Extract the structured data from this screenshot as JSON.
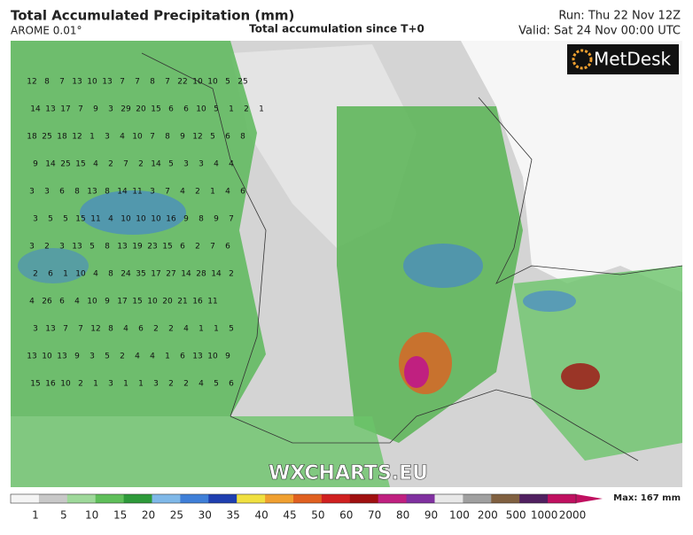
{
  "header": {
    "title": "Total Accumulated Precipitation (mm)",
    "model": "AROME 0.01°",
    "subtitle": "Total accumulation since T+0",
    "run": "Run: Thu 22 Nov 12Z",
    "valid": "Valid: Sat 24 Nov 00:00 UTC"
  },
  "logo": "MetDesk",
  "watermark": "WXCHARTS.EU",
  "colorbar": {
    "max_label": "Max: 167 mm",
    "ticks": [
      "1",
      "5",
      "10",
      "15",
      "20",
      "25",
      "30",
      "35",
      "40",
      "45",
      "50",
      "60",
      "70",
      "80",
      "90",
      "100",
      "200",
      "500",
      "1000",
      "2000"
    ],
    "colors": [
      "#f4f4f4",
      "#c8c8c8",
      "#9ed89a",
      "#5fbf5a",
      "#2e9a3a",
      "#7fb8e8",
      "#3f7fd8",
      "#1f3fb0",
      "#f0e040",
      "#f0a030",
      "#e06020",
      "#d02020",
      "#a01010",
      "#c02080",
      "#8030a0",
      "#e8e8e8",
      "#a0a0a0",
      "#806040",
      "#502060",
      "#c01060"
    ]
  },
  "map_labels": [
    [
      "12",
      "8",
      "7",
      "13",
      "10",
      "13",
      "7",
      "7",
      "8",
      "7",
      "22",
      "10",
      "10",
      "5",
      "25"
    ],
    [
      "14",
      "13",
      "17",
      "7",
      "9",
      "3",
      "29",
      "20",
      "15",
      "6",
      "6",
      "10",
      "5",
      "1",
      "2",
      "1"
    ],
    [
      "18",
      "25",
      "18",
      "12",
      "1",
      "3",
      "4",
      "10",
      "7",
      "8",
      "9",
      "12",
      "5",
      "6",
      "8"
    ],
    [
      "9",
      "14",
      "25",
      "15",
      "4",
      "2",
      "7",
      "2",
      "14",
      "5",
      "3",
      "3",
      "4",
      "4"
    ],
    [
      "3",
      "3",
      "6",
      "8",
      "13",
      "8",
      "14",
      "11",
      "3",
      "7",
      "4",
      "2",
      "1",
      "4",
      "6"
    ],
    [
      "3",
      "5",
      "5",
      "15",
      "11",
      "4",
      "10",
      "10",
      "10",
      "16",
      "9",
      "8",
      "9",
      "7"
    ],
    [
      "3",
      "2",
      "3",
      "13",
      "5",
      "8",
      "13",
      "19",
      "23",
      "15",
      "6",
      "2",
      "7",
      "6"
    ],
    [
      "2",
      "6",
      "1",
      "10",
      "4",
      "8",
      "24",
      "35",
      "17",
      "27",
      "14",
      "28",
      "14",
      "2"
    ],
    [
      "4",
      "26",
      "6",
      "4",
      "10",
      "9",
      "17",
      "15",
      "10",
      "20",
      "21",
      "16",
      "11"
    ],
    [
      "3",
      "13",
      "7",
      "7",
      "12",
      "8",
      "4",
      "6",
      "2",
      "2",
      "4",
      "1",
      "1",
      "5"
    ],
    [
      "13",
      "10",
      "13",
      "9",
      "3",
      "5",
      "2",
      "4",
      "4",
      "1",
      "6",
      "13",
      "10",
      "9"
    ],
    [
      "15",
      "16",
      "10",
      "2",
      "1",
      "3",
      "1",
      "1",
      "3",
      "2",
      "2",
      "4",
      "5",
      "6"
    ]
  ]
}
